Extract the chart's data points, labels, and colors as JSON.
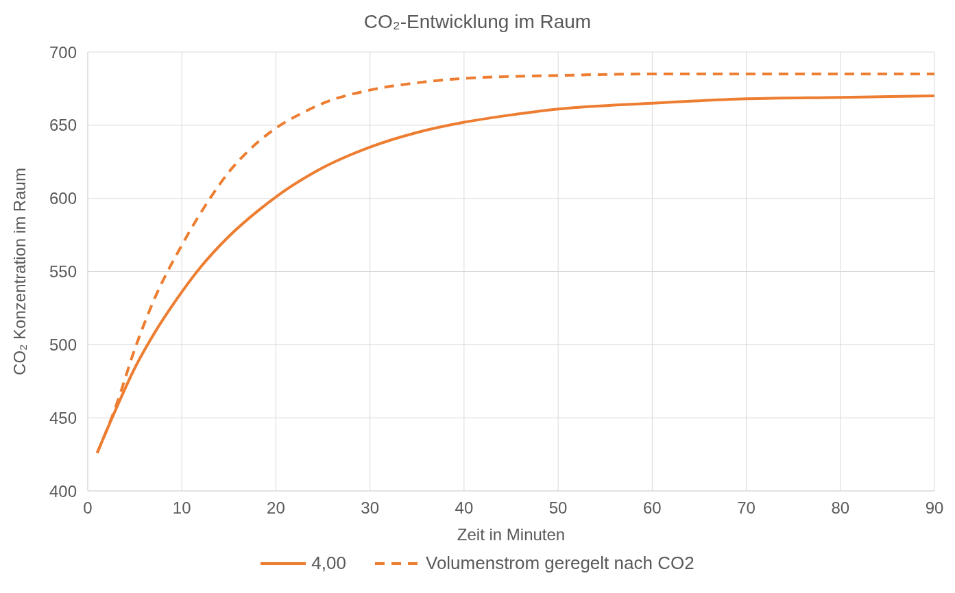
{
  "chart_data": {
    "type": "line",
    "title": "CO₂-Entwicklung im Raum",
    "xlabel": "Zeit in Minuten",
    "ylabel": "CO₂ Konzentration im Raum",
    "xlim": [
      0,
      90
    ],
    "xticks": [
      0,
      10,
      20,
      30,
      40,
      50,
      60,
      70,
      80,
      90
    ],
    "ylim": [
      400,
      700
    ],
    "yticks": [
      400,
      450,
      500,
      550,
      600,
      650,
      700
    ],
    "grid": true,
    "legend": "bottom",
    "marker": "none",
    "series": [
      {
        "name": "4,00",
        "color": "#ed7d31",
        "line_style": "solid",
        "x": [
          1,
          3,
          5,
          7,
          10,
          12,
          15,
          18,
          20,
          25,
          30,
          35,
          40,
          45,
          50,
          60,
          70,
          80,
          90
        ],
        "values": [
          426,
          456,
          484,
          507,
          536,
          553,
          574,
          591,
          601,
          621,
          635,
          645,
          652,
          657,
          661,
          665,
          668,
          669,
          670
        ]
      },
      {
        "name": "Volumenstrom geregelt nach CO2",
        "color": "#ed7d31",
        "line_style": "dashed",
        "x": [
          1,
          3,
          5,
          7,
          10,
          13,
          15,
          17,
          20,
          23,
          25,
          30,
          35,
          40,
          50,
          60,
          70,
          80,
          90
        ],
        "values": [
          426,
          458,
          497,
          530,
          568,
          600,
          618,
          632,
          648,
          659,
          665,
          674,
          679,
          682,
          684,
          685,
          685,
          685,
          685
        ]
      }
    ]
  }
}
